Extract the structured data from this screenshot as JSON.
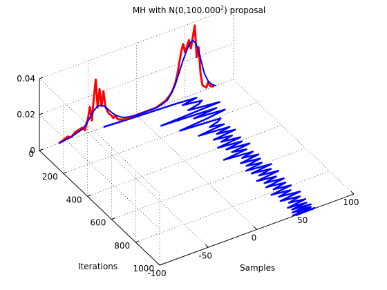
{
  "chart_data": {
    "type": "line",
    "projection": "3d",
    "title_main": "MH with N(0,100.000",
    "title_sup": "2",
    "title_end": ") proposal",
    "xlabel": "Samples",
    "ylabel": "Iterations",
    "zlabel": "",
    "xlim": [
      -100,
      100
    ],
    "ylim": [
      0,
      1000
    ],
    "zlim": [
      0,
      0.04
    ],
    "xticks": [
      "-100",
      "-50",
      "0",
      "50",
      "100"
    ],
    "xtick_values": [
      -100,
      -50,
      0,
      50,
      100
    ],
    "yticks": [
      "0",
      "200",
      "400",
      "600",
      "800",
      "1000"
    ],
    "ytick_values": [
      0,
      200,
      400,
      600,
      800,
      1000
    ],
    "zticks": [
      "0",
      "0.02",
      "0.04"
    ],
    "ztick_values": [
      0,
      0.02,
      0.04
    ],
    "grid": true,
    "colors": {
      "trace": "#0000ff",
      "histogram": "#ff0000",
      "density": "#0000ff"
    },
    "series": [
      {
        "role": "sample-trace",
        "color": "#0000ff",
        "x": [
          -34,
          -5,
          38,
          58,
          42,
          60,
          55,
          42,
          72,
          10,
          65,
          40,
          70,
          50,
          20,
          60,
          55,
          45,
          58,
          30,
          60,
          45,
          62,
          38,
          55,
          42,
          60,
          35,
          58,
          40,
          62,
          42,
          55,
          30,
          58,
          45,
          60,
          40,
          58,
          42,
          56,
          38,
          62,
          40,
          58,
          44,
          62,
          38,
          56,
          42,
          60,
          40,
          58,
          44,
          60,
          38,
          56,
          42,
          62,
          40,
          58,
          45,
          60,
          40,
          58,
          42,
          60,
          40,
          58,
          44,
          56,
          38,
          60,
          42,
          58,
          40
        ],
        "y": [
          0,
          10,
          20,
          30,
          45,
          60,
          75,
          90,
          110,
          125,
          140,
          155,
          170,
          185,
          200,
          215,
          230,
          245,
          260,
          275,
          290,
          305,
          320,
          335,
          350,
          365,
          380,
          395,
          410,
          425,
          440,
          455,
          470,
          485,
          500,
          515,
          530,
          545,
          560,
          575,
          590,
          605,
          620,
          635,
          650,
          665,
          680,
          695,
          710,
          725,
          740,
          755,
          770,
          785,
          800,
          815,
          830,
          845,
          860,
          875,
          890,
          905,
          920,
          935,
          945,
          955,
          965,
          975,
          982,
          988,
          992,
          995,
          997,
          998,
          999,
          1000
        ]
      },
      {
        "role": "histogram",
        "color": "#ff0000",
        "x": [
          -80,
          -75,
          -71,
          -67,
          -63,
          -59,
          -56,
          -53,
          -50,
          -48,
          -46,
          -44,
          -42,
          -40,
          -38,
          -36,
          -34,
          -32,
          -30,
          -28,
          -26,
          -24,
          -22,
          -20,
          -18,
          -15,
          -12,
          -10,
          5,
          20,
          25,
          30,
          34,
          37,
          40,
          42,
          44,
          46,
          48,
          50,
          52,
          54,
          56,
          58,
          60,
          62,
          64,
          66,
          68,
          70,
          72,
          74,
          76,
          80
        ],
        "z": [
          0.0,
          0.001,
          0.002,
          0.001,
          0.003,
          0.0035,
          0.004,
          0.002,
          0.008,
          0.014,
          0.006,
          0.018,
          0.028,
          0.012,
          0.022,
          0.012,
          0.02,
          0.011,
          0.008,
          0.006,
          0.005,
          0.003,
          0.004,
          0.002,
          0.001,
          0.0005,
          0.0,
          0.0,
          0.0,
          0.0,
          0.001,
          0.002,
          0.004,
          0.006,
          0.01,
          0.014,
          0.02,
          0.026,
          0.03,
          0.025,
          0.028,
          0.031,
          0.026,
          0.032,
          0.038,
          0.02,
          0.025,
          0.01,
          0.003,
          0.002,
          0.001,
          0.004,
          0.001,
          0.0
        ]
      },
      {
        "role": "density",
        "color": "#0000ff",
        "x": [
          -80,
          -74,
          -68,
          -62,
          -56,
          -52,
          -48,
          -44,
          -40,
          -36,
          -32,
          -28,
          -24,
          -20,
          -16,
          -12,
          -8,
          0,
          10,
          20,
          26,
          32,
          36,
          40,
          44,
          48,
          52,
          55,
          58,
          61,
          64,
          67,
          70,
          74,
          78,
          82
        ],
        "z": [
          0.0,
          0.0005,
          0.001,
          0.002,
          0.003,
          0.005,
          0.008,
          0.011,
          0.013,
          0.0125,
          0.011,
          0.008,
          0.0055,
          0.0035,
          0.002,
          0.001,
          0.0005,
          0.0,
          0.0,
          0.0,
          0.0006,
          0.002,
          0.005,
          0.009,
          0.015,
          0.021,
          0.026,
          0.029,
          0.03,
          0.028,
          0.023,
          0.016,
          0.009,
          0.004,
          0.0015,
          0.0
        ]
      }
    ]
  }
}
